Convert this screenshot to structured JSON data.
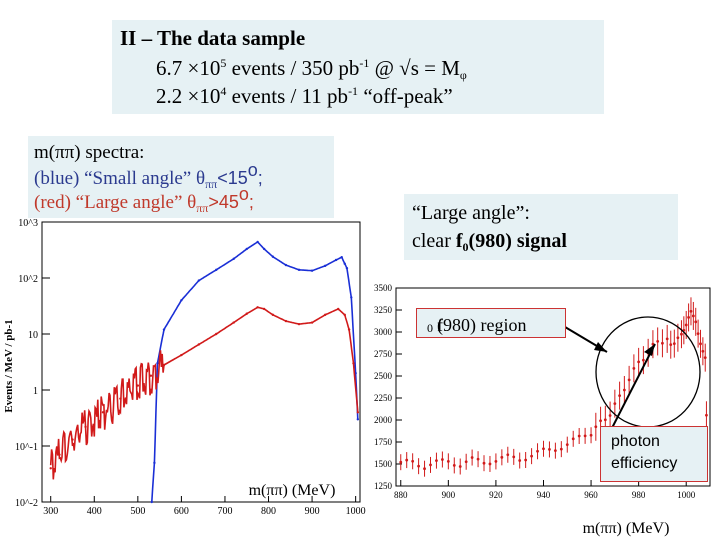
{
  "title": {
    "heading": "II – The data sample",
    "line1_a": "6.7 ×10",
    "line1_exp": "5",
    "line1_b": " events / 350  pb",
    "line1_exp2": "-1",
    "line1_c": " @ √s = M",
    "line1_sub": "φ",
    "line2_a": "2.2 ×10",
    "line2_exp": "4",
    "line2_b": " events /   11  pb",
    "line2_exp2": "-1",
    "line2_c": " “off-peak”"
  },
  "spectra_box": {
    "line1": "m(ππ) spectra:",
    "line2_a": "(blue) “Small angle” θ",
    "line2_sub": "ππ",
    "line2_b": "<15",
    "line2_sup": "o",
    "line2_c": ";",
    "line3_a": "(red) “Large angle”  θ",
    "line3_sub": "ππ",
    "line3_b": ">45",
    "line3_sup": "o",
    "line3_c": ";"
  },
  "large_angle_box": {
    "line1": "“Large angle”:",
    "line2_a": "clear ",
    "line2_bold": "f",
    "line2_sub": "0",
    "line2_bold2": "(980) signal"
  },
  "region_label": {
    "a": "f",
    "sub": "0",
    "b": "(980) region"
  },
  "photon_label": {
    "line1": "photon",
    "line2": "efficiency"
  },
  "colors": {
    "box_bg": "#e6f1f4",
    "blue_series": "#1a2fd6",
    "red_series": "#d11a1a",
    "callout": "#000000"
  },
  "chart_data": [
    {
      "type": "line",
      "title": "",
      "xlabel": "m(ππ) (MeV)",
      "ylabel": "Events / MeV / pb-1",
      "scale_y": "log",
      "xlim": [
        280,
        1010
      ],
      "ylim": [
        0.01,
        1000
      ],
      "x_ticks": [
        300,
        400,
        500,
        600,
        700,
        800,
        900,
        1000
      ],
      "y_ticks": [
        "10^-2",
        "10^-1",
        "1",
        "10",
        "10^2",
        "10^3"
      ],
      "series": [
        {
          "name": "(blue) “Small angle” θππ<15o",
          "color": "blue",
          "points": [
            [
              532,
              0.01
            ],
            [
              538,
              0.05
            ],
            [
              545,
              3
            ],
            [
              560,
              12
            ],
            [
              600,
              40
            ],
            [
              640,
              90
            ],
            [
              680,
              140
            ],
            [
              720,
              220
            ],
            [
              750,
              330
            ],
            [
              775,
              440
            ],
            [
              790,
              330
            ],
            [
              810,
              240
            ],
            [
              840,
              170
            ],
            [
              870,
              140
            ],
            [
              900,
              135
            ],
            [
              930,
              165
            ],
            [
              955,
              210
            ],
            [
              968,
              235
            ],
            [
              975,
              180
            ],
            [
              980,
              150
            ],
            [
              990,
              45
            ],
            [
              1000,
              2
            ],
            [
              1005,
              0.3
            ]
          ]
        },
        {
          "name": "(red) “Large angle” θππ>45o",
          "color": "red",
          "points": [
            [
              300,
              0.04
            ],
            [
              320,
              0.07
            ],
            [
              350,
              0.13
            ],
            [
              380,
              0.22
            ],
            [
              420,
              0.4
            ],
            [
              460,
              0.7
            ],
            [
              500,
              1.2
            ],
            [
              530,
              1.8
            ],
            [
              560,
              2.8
            ],
            [
              600,
              4.2
            ],
            [
              640,
              6.5
            ],
            [
              680,
              10
            ],
            [
              720,
              16
            ],
            [
              750,
              23
            ],
            [
              775,
              30
            ],
            [
              790,
              28
            ],
            [
              810,
              22
            ],
            [
              840,
              17
            ],
            [
              870,
              15
            ],
            [
              900,
              16
            ],
            [
              930,
              22
            ],
            [
              960,
              28
            ],
            [
              975,
              22
            ],
            [
              985,
              12
            ],
            [
              995,
              3
            ],
            [
              1005,
              0.4
            ]
          ]
        }
      ]
    },
    {
      "type": "scatter",
      "title": "",
      "xlabel": "m(ππ) (MeV)",
      "ylabel": "",
      "xlim": [
        878,
        1010
      ],
      "ylim": [
        1250,
        3500
      ],
      "x_ticks": [
        880,
        900,
        920,
        940,
        960,
        980,
        1000
      ],
      "y_ticks": [
        1250,
        1500,
        1750,
        2000,
        2250,
        2500,
        2750,
        3000,
        3250,
        3500
      ],
      "series": [
        {
          "name": "",
          "color": "red",
          "points": [
            [
              880,
              1500
            ],
            [
              885,
              1520
            ],
            [
              890,
              1480
            ],
            [
              895,
              1510
            ],
            [
              900,
              1530
            ],
            [
              905,
              1500
            ],
            [
              910,
              1540
            ],
            [
              915,
              1520
            ],
            [
              920,
              1550
            ],
            [
              925,
              1570
            ],
            [
              930,
              1560
            ],
            [
              935,
              1600
            ],
            [
              940,
              1640
            ],
            [
              945,
              1680
            ],
            [
              950,
              1720
            ],
            [
              955,
              1790
            ],
            [
              960,
              1860
            ],
            [
              964,
              1960
            ],
            [
              968,
              2080
            ],
            [
              972,
              2250
            ],
            [
              976,
              2480
            ],
            [
              980,
              2640
            ],
            [
              984,
              2780
            ],
            [
              988,
              2880
            ],
            [
              992,
              2930
            ],
            [
              995,
              2840
            ],
            [
              998,
              3010
            ],
            [
              1000,
              3080
            ],
            [
              1002,
              3200
            ],
            [
              1004,
              3120
            ],
            [
              1006,
              2900
            ],
            [
              1008,
              2700
            ],
            [
              1009,
              1450
            ]
          ]
        }
      ]
    }
  ]
}
